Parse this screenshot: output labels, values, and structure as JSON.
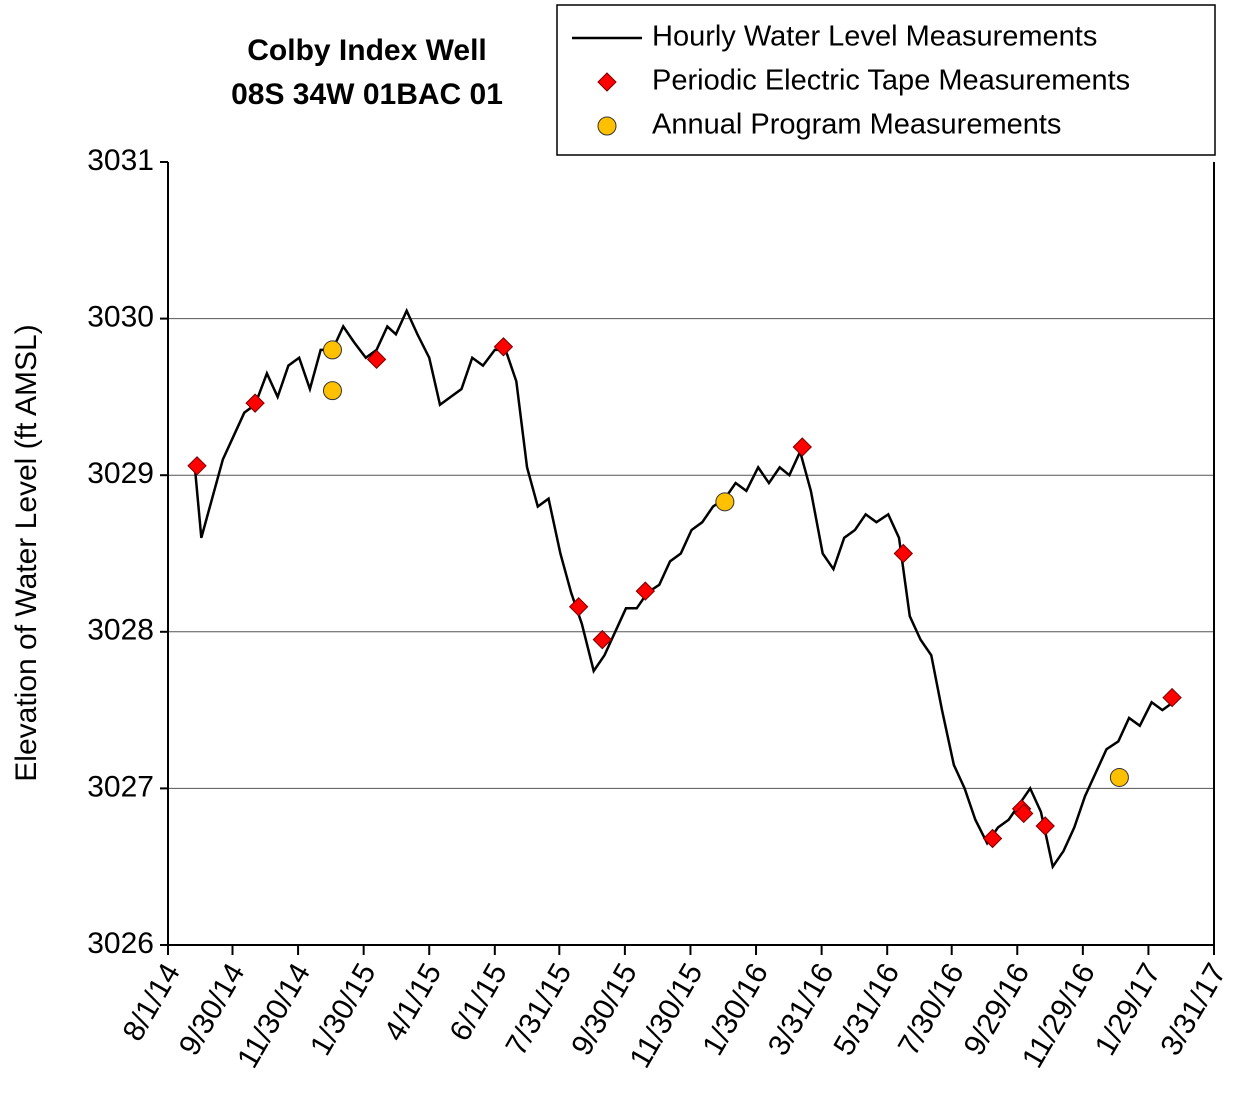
{
  "chart_data": {
    "type": "line",
    "title": "Colby Index Well",
    "subtitle": "08S 34W 01BAC 01",
    "y_label": "Elevation of Water Level (ft AMSL)",
    "xlim": [
      "8/1/14",
      "3/31/17"
    ],
    "xticks": [
      "8/1/14",
      "9/30/14",
      "11/30/14",
      "1/30/15",
      "4/1/15",
      "6/1/15",
      "7/31/15",
      "9/30/15",
      "11/30/15",
      "1/30/16",
      "3/31/16",
      "5/31/16",
      "7/30/16",
      "9/29/16",
      "11/29/16",
      "1/29/17",
      "3/31/17"
    ],
    "ylim": [
      3026,
      3031
    ],
    "yticks": [
      3026,
      3027,
      3028,
      3029,
      3030,
      3031
    ],
    "grid": true,
    "legend": "top-right",
    "series": [
      {
        "name": "Hourly Water Level Measurements",
        "color": "#000000",
        "marker": "line",
        "x": [
          "8/26/14",
          "9/1/14",
          "9/11/14",
          "9/21/14",
          "10/1/14",
          "10/11/14",
          "10/21/14",
          "11/1/14",
          "11/11/14",
          "11/21/14",
          "12/1/14",
          "12/11/14",
          "12/21/14",
          "1/1/15",
          "1/11/15",
          "1/21/15",
          "2/1/15",
          "2/11/15",
          "2/21/15",
          "3/1/15",
          "3/11/15",
          "3/21/15",
          "4/1/15",
          "4/11/15",
          "4/21/15",
          "5/1/15",
          "5/11/15",
          "5/21/15",
          "6/1/15",
          "6/11/15",
          "6/21/15",
          "7/1/15",
          "7/11/15",
          "7/21/15",
          "8/1/15",
          "8/11/15",
          "8/21/15",
          "9/1/15",
          "9/11/15",
          "9/21/15",
          "10/1/15",
          "10/11/15",
          "10/21/15",
          "11/1/15",
          "11/11/15",
          "11/21/15",
          "12/1/15",
          "12/11/15",
          "12/21/15",
          "1/1/16",
          "1/11/16",
          "1/21/16",
          "2/1/16",
          "2/11/16",
          "2/21/16",
          "3/1/16",
          "3/11/16",
          "3/21/16",
          "4/1/16",
          "4/11/16",
          "4/21/16",
          "5/1/16",
          "5/11/16",
          "5/21/16",
          "6/1/16",
          "6/11/16",
          "6/21/16",
          "7/1/16",
          "7/11/16",
          "7/21/16",
          "8/1/16",
          "8/11/16",
          "8/21/16",
          "9/1/16",
          "9/11/16",
          "9/21/16",
          "10/1/16",
          "10/11/16",
          "10/21/16",
          "11/1/16",
          "11/11/16",
          "11/21/16",
          "12/1/16",
          "12/11/16",
          "12/21/16",
          "1/1/17",
          "1/11/17",
          "1/21/17",
          "2/1/17",
          "2/11/17",
          "2/21/17"
        ],
        "values": [
          3029.05,
          3028.6,
          3028.85,
          3029.1,
          3029.25,
          3029.4,
          3029.45,
          3029.65,
          3029.5,
          3029.7,
          3029.75,
          3029.55,
          3029.8,
          3029.8,
          3029.95,
          3029.85,
          3029.75,
          3029.8,
          3029.95,
          3029.9,
          3030.05,
          3029.9,
          3029.75,
          3029.45,
          3029.5,
          3029.55,
          3029.75,
          3029.7,
          3029.8,
          3029.8,
          3029.6,
          3029.05,
          3028.8,
          3028.85,
          3028.5,
          3028.25,
          3028.05,
          3027.75,
          3027.85,
          3028.0,
          3028.15,
          3028.15,
          3028.25,
          3028.3,
          3028.45,
          3028.5,
          3028.65,
          3028.7,
          3028.8,
          3028.85,
          3028.95,
          3028.9,
          3029.05,
          3028.95,
          3029.05,
          3029.0,
          3029.15,
          3028.9,
          3028.5,
          3028.4,
          3028.6,
          3028.65,
          3028.75,
          3028.7,
          3028.75,
          3028.6,
          3028.1,
          3027.95,
          3027.85,
          3027.5,
          3027.15,
          3027.0,
          3026.8,
          3026.65,
          3026.75,
          3026.8,
          3026.9,
          3027.0,
          3026.85,
          3026.5,
          3026.6,
          3026.75,
          3026.95,
          3027.1,
          3027.25,
          3027.3,
          3027.45,
          3027.4,
          3027.55,
          3027.5,
          3027.55
        ]
      },
      {
        "name": "Periodic Electric Tape Measurements",
        "color": "#ff0000",
        "marker": "diamond",
        "x": [
          "8/28/14",
          "10/21/14",
          "2/11/15",
          "6/9/15",
          "8/18/15",
          "9/9/15",
          "10/19/15",
          "3/13/16",
          "6/15/16",
          "9/6/16",
          "10/3/16",
          "10/5/16",
          "10/25/16",
          "2/20/17"
        ],
        "values": [
          3029.06,
          3029.46,
          3029.74,
          3029.82,
          3028.16,
          3027.95,
          3028.26,
          3029.18,
          3028.5,
          3026.68,
          3026.87,
          3026.84,
          3026.76,
          3027.58
        ]
      },
      {
        "name": "Annual Program Measurements",
        "color": "#ffc000",
        "marker": "circle",
        "x": [
          "1/1/15",
          "1/1/15",
          "1/1/16",
          "1/2/17"
        ],
        "values": [
          3029.8,
          3029.54,
          3028.83,
          3027.07
        ]
      }
    ]
  }
}
